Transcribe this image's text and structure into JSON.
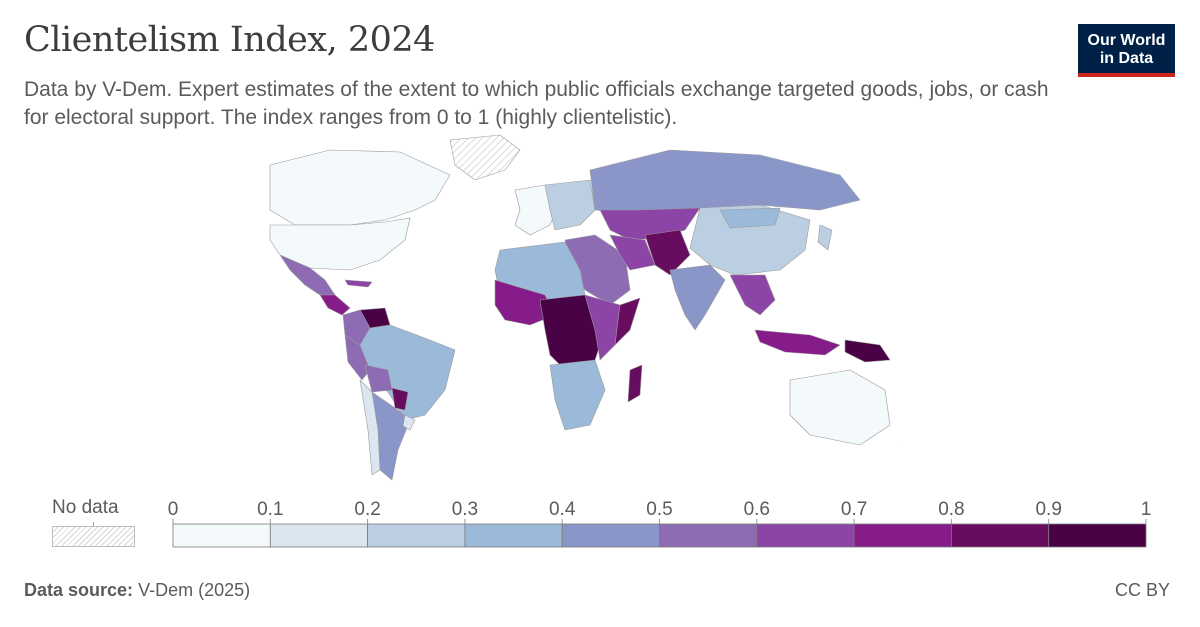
{
  "header": {
    "title": "Clientelism Index, 2024",
    "subtitle": "Data by V-Dem. Expert estimates of the extent to which public officials exchange targeted goods, jobs, or cash for electoral support. The index ranges from 0 to 1 (highly clientelistic).",
    "logo_line1": "Our World",
    "logo_line2": "in Data"
  },
  "legend": {
    "no_data_label": "No data",
    "ticks": [
      "0",
      "0.1",
      "0.2",
      "0.3",
      "0.4",
      "0.5",
      "0.6",
      "0.7",
      "0.8",
      "0.9",
      "1"
    ],
    "bins": [
      {
        "from": 0.0,
        "to": 0.1,
        "color": "#f4f9fb"
      },
      {
        "from": 0.1,
        "to": 0.2,
        "color": "#dbe6f0"
      },
      {
        "from": 0.2,
        "to": 0.3,
        "color": "#bccfe2"
      },
      {
        "from": 0.3,
        "to": 0.4,
        "color": "#9bb9d8"
      },
      {
        "from": 0.4,
        "to": 0.5,
        "color": "#8b96c8"
      },
      {
        "from": 0.5,
        "to": 0.6,
        "color": "#8d6cb4"
      },
      {
        "from": 0.6,
        "to": 0.7,
        "color": "#8c45a6"
      },
      {
        "from": 0.7,
        "to": 0.8,
        "color": "#861b8a"
      },
      {
        "from": 0.8,
        "to": 0.9,
        "color": "#680c60"
      },
      {
        "from": 0.9,
        "to": 1.0,
        "color": "#4a0246"
      }
    ]
  },
  "map_regions": [
    {
      "name": "Greenland",
      "value": null
    },
    {
      "name": "Canada",
      "value": 0.05
    },
    {
      "name": "United States",
      "value": 0.08
    },
    {
      "name": "Mexico",
      "value": 0.55
    },
    {
      "name": "Central America",
      "value": 0.72
    },
    {
      "name": "Cuba",
      "value": 0.6
    },
    {
      "name": "Venezuela",
      "value": 0.95
    },
    {
      "name": "Colombia",
      "value": 0.55
    },
    {
      "name": "Peru",
      "value": 0.55
    },
    {
      "name": "Brazil",
      "value": 0.35
    },
    {
      "name": "Bolivia",
      "value": 0.5
    },
    {
      "name": "Paraguay",
      "value": 0.85
    },
    {
      "name": "Argentina",
      "value": 0.45
    },
    {
      "name": "Chile",
      "value": 0.15
    },
    {
      "name": "Uruguay",
      "value": 0.12
    },
    {
      "name": "Western Europe",
      "value": 0.08
    },
    {
      "name": "Eastern Europe",
      "value": 0.25
    },
    {
      "name": "Russia",
      "value": 0.45
    },
    {
      "name": "Central Asia",
      "value": 0.65
    },
    {
      "name": "Middle East",
      "value": 0.55
    },
    {
      "name": "Iran",
      "value": 0.6
    },
    {
      "name": "Afghanistan-Pakistan",
      "value": 0.85
    },
    {
      "name": "India",
      "value": 0.45
    },
    {
      "name": "China",
      "value": 0.2
    },
    {
      "name": "Mongolia",
      "value": 0.3
    },
    {
      "name": "Southeast Asia",
      "value": 0.6
    },
    {
      "name": "Indonesia",
      "value": 0.78
    },
    {
      "name": "Papua New Guinea",
      "value": 0.9
    },
    {
      "name": "Australia",
      "value": 0.05
    },
    {
      "name": "New Zealand",
      "value": 0.05
    },
    {
      "name": "Japan",
      "value": 0.2
    },
    {
      "name": "North Africa",
      "value": 0.3
    },
    {
      "name": "West Africa",
      "value": 0.75
    },
    {
      "name": "Central Africa",
      "value": 0.9
    },
    {
      "name": "East Africa",
      "value": 0.6
    },
    {
      "name": "Somalia",
      "value": 0.8
    },
    {
      "name": "Southern Africa",
      "value": 0.3
    },
    {
      "name": "Madagascar",
      "value": 0.85
    }
  ],
  "footer": {
    "source_label": "Data source:",
    "source_text": "V-Dem (2025)",
    "license": "CC BY"
  }
}
